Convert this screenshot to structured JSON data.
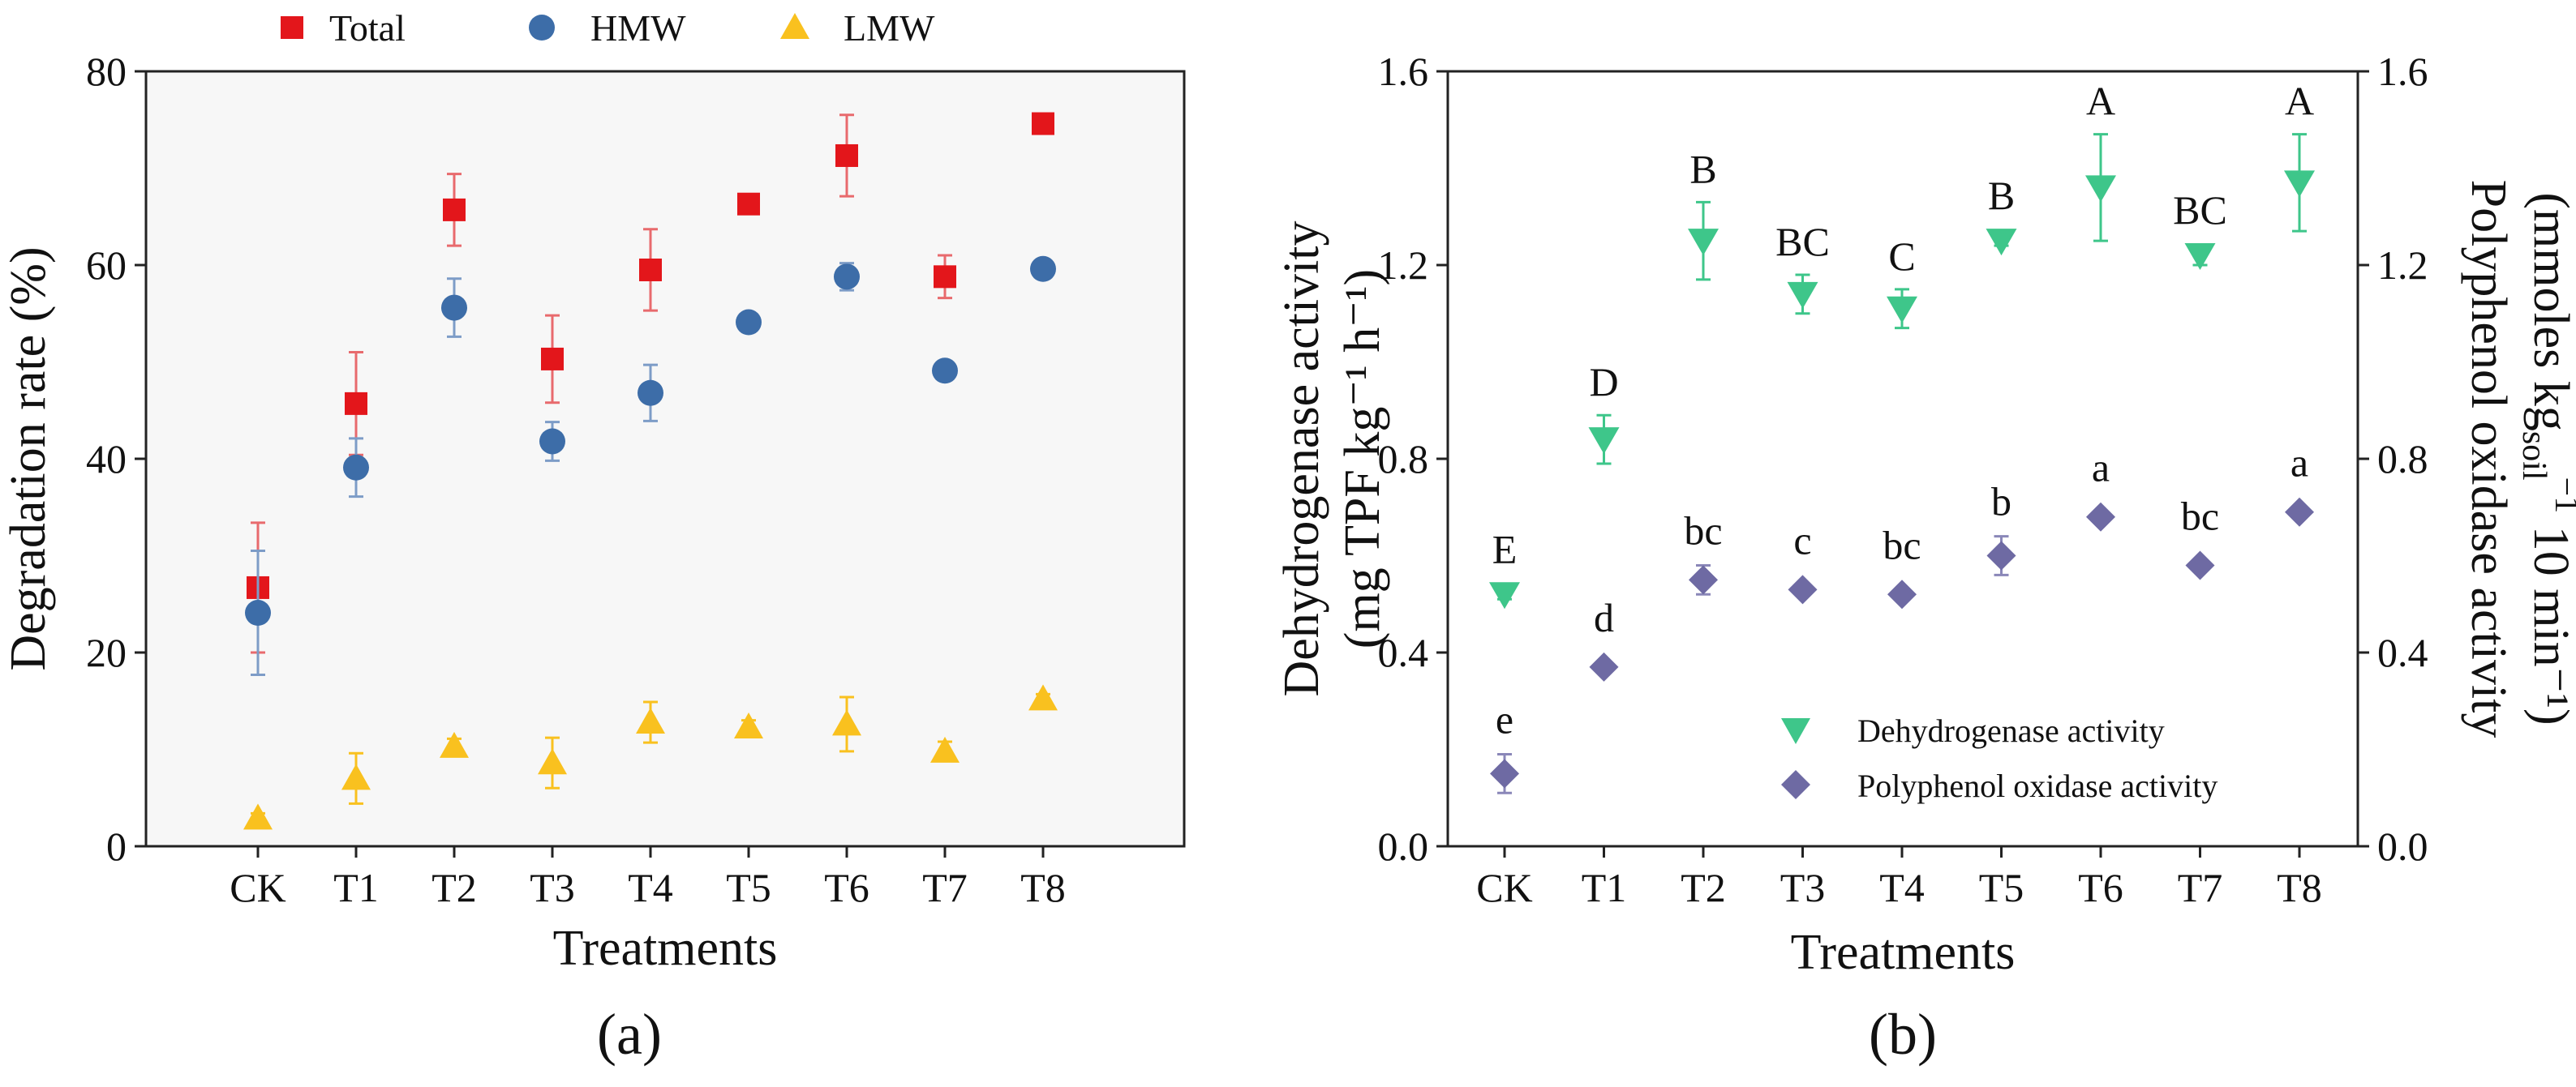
{
  "colors": {
    "total": "#e3161b",
    "hmw": "#3d6da8",
    "lmw": "#f9c11f",
    "dehydrogenase": "#3ec68a",
    "polyphenol": "#6e6aa3",
    "plot_bg": "#f7f7f7"
  },
  "chart_data": [
    {
      "panel": "(a)",
      "type": "scatter",
      "xlabel": "Treatments",
      "ylabel": "Degradation rate (%)",
      "categories": [
        "CK",
        "T1",
        "T2",
        "T3",
        "T4",
        "T5",
        "T6",
        "T7",
        "T8"
      ],
      "ylim": [
        0,
        80
      ],
      "yticks": [
        "0",
        "20",
        "40",
        "60",
        "80"
      ],
      "grid": false,
      "legend": "top, outside plot",
      "series": [
        {
          "name": "Total",
          "marker": "square",
          "values": [
            26.7,
            45.7,
            65.7,
            50.3,
            59.5,
            66.3,
            71.3,
            58.8,
            74.6
          ],
          "errors": [
            6.7,
            5.3,
            3.7,
            4.5,
            4.2,
            0.6,
            4.2,
            2.2,
            0.6
          ]
        },
        {
          "name": "HMW",
          "marker": "circle",
          "values": [
            24.1,
            39.1,
            55.6,
            41.8,
            46.8,
            54.1,
            58.8,
            49.1,
            59.6
          ],
          "errors": [
            6.4,
            3.0,
            3.0,
            2.0,
            2.9,
            0.5,
            1.4,
            0.4,
            0.4
          ]
        },
        {
          "name": "LMW",
          "marker": "triangle-up",
          "values": [
            2.9,
            7.0,
            10.3,
            8.6,
            12.8,
            12.3,
            12.6,
            9.8,
            15.2
          ],
          "errors": [
            0.5,
            2.6,
            0.8,
            2.6,
            2.1,
            0.7,
            2.8,
            1.0,
            0.5
          ]
        }
      ]
    },
    {
      "panel": "(b)",
      "type": "scatter",
      "xlabel": "Treatments",
      "ylabel_left_line1": "Dehydrogenase activity",
      "ylabel_left_line2": "(mg TPF kg⁻¹ h⁻¹)",
      "ylabel_right_line1": "Polyphenol oxidase activity",
      "ylabel_right_line2": "(mmoles kg",
      "ylabel_right_sub": "soil",
      "ylabel_right_sup": "−1",
      "ylabel_right_tail": " 10 min⁻¹)",
      "categories": [
        "CK",
        "T1",
        "T2",
        "T3",
        "T4",
        "T5",
        "T6",
        "T7",
        "T8"
      ],
      "ylim": [
        0.0,
        1.6
      ],
      "yticks": [
        "0.0",
        "0.4",
        "0.8",
        "1.2",
        "1.6"
      ],
      "y2lim": [
        0.0,
        1.6
      ],
      "y2ticks": [
        "0.0",
        "0.4",
        "0.8",
        "1.2",
        "1.6"
      ],
      "grid": false,
      "legend": "bottom-right",
      "series": [
        {
          "name": "Dehydrogenase activity",
          "axis": "left",
          "marker": "triangle-down",
          "values": [
            0.52,
            0.84,
            1.25,
            1.14,
            1.11,
            1.25,
            1.36,
            1.22,
            1.37
          ],
          "errors": [
            0.01,
            0.05,
            0.08,
            0.04,
            0.04,
            0.01,
            0.11,
            0.02,
            0.1
          ],
          "labels": [
            "E",
            "D",
            "B",
            "BC",
            "C",
            "B",
            "A",
            "BC",
            "A"
          ]
        },
        {
          "name": "Polyphenol oxidase activity",
          "axis": "right",
          "marker": "diamond",
          "values": [
            0.15,
            0.37,
            0.55,
            0.53,
            0.52,
            0.6,
            0.68,
            0.58,
            0.69
          ],
          "errors": [
            0.04,
            0.01,
            0.03,
            0.01,
            0.01,
            0.04,
            0.01,
            0.01,
            0.01
          ],
          "labels": [
            "e",
            "d",
            "bc",
            "c",
            "bc",
            "b",
            "a",
            "bc",
            "a"
          ]
        }
      ]
    }
  ]
}
